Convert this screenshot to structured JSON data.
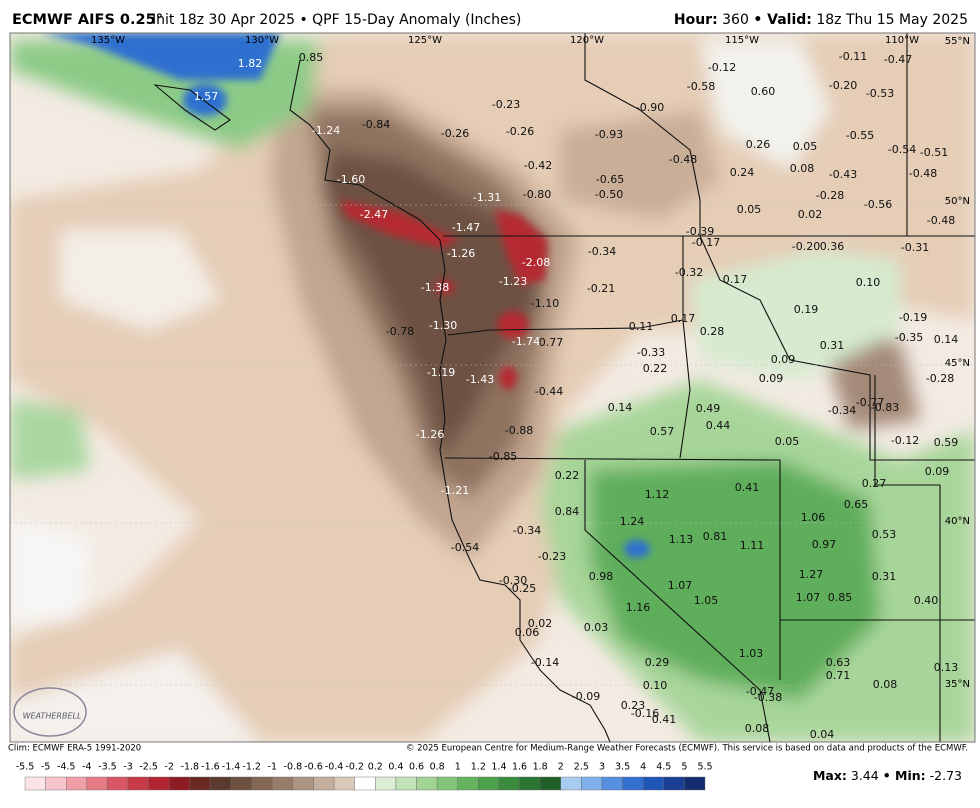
{
  "header": {
    "model": "ECMWF AIFS 0.25°",
    "run": "Init 18z 30 Apr 2025 • QPF 15-Day Anomaly (Inches)",
    "hour_label": "Hour:",
    "hour": "360",
    "valid_label": "• Valid:",
    "valid": "18z Thu 15 May 2025"
  },
  "map": {
    "lon_labels": [
      "135°W",
      "130°W",
      "125°W",
      "120°W",
      "115°W",
      "110°W"
    ],
    "lat_labels": [
      "55°N",
      "50°N",
      "45°N",
      "40°N",
      "35°N"
    ],
    "logo": "WEATHERBELL",
    "values": [
      "1.82",
      "0.85",
      "1.57",
      "-1.24",
      "-0.84",
      "-0.26",
      "-0.23",
      "-0.26",
      "-0.93",
      "-0.90",
      "-0.12",
      "-0.58",
      "0.60",
      "-0.11",
      "-0.47",
      "-0.20",
      "-0.53",
      "-0.55",
      "-0.54",
      "-0.51",
      "-0.48",
      "-0.43",
      "-0.56",
      "-0.48",
      "0.26",
      "0.05",
      "0.08",
      "-0.28",
      "0.02",
      "0.05",
      "0.24",
      "-0.48",
      "-0.42",
      "-0.65",
      "-0.50",
      "-0.80",
      "-1.60",
      "-1.31",
      "-2.47",
      "-1.47",
      "-0.39",
      "-0.17",
      "-0.20",
      "0.36",
      "-0.31",
      "-1.26",
      "-2.08",
      "-0.34",
      "-0.32",
      "0.17",
      "0.10",
      "-1.23",
      "-1.38",
      "-0.21",
      "-1.10",
      "0.19",
      "-0.19",
      "-0.78",
      "-1.30",
      "0.11",
      "0.17",
      "0.28",
      "-0.35",
      "0.14",
      "0.31",
      "-1.74",
      "0.77",
      "-0.33",
      "0.22",
      "0.09",
      "0.09",
      "-0.28",
      "-1.19",
      "-1.43",
      "-0.44",
      "0.14",
      "0.49",
      "-0.34",
      "-0.77",
      "-0.83",
      "0.44",
      "0.57",
      "-0.88",
      "-1.26",
      "0.05",
      "-0.12",
      "0.59",
      "-0.85",
      "0.22",
      "0.09",
      "0.27",
      "1.12",
      "0.41",
      "-1.21",
      "0.65",
      "0.84",
      "1.24",
      "1.06",
      "0.53",
      "-0.34",
      "1.13",
      "0.81",
      "1.11",
      "0.97",
      "-0.54",
      "-0.23",
      "1.27",
      "0.31",
      "0.98",
      "1.07",
      "-0.30",
      "-0.25",
      "1.05",
      "1.07",
      "0.85",
      "0.40",
      "1.16",
      "0.02",
      "0.03",
      "0.06",
      "1.03",
      "0.63",
      "-0.14",
      "0.29",
      "0.71",
      "0.13",
      "0.10",
      "0.08",
      "-0.47",
      "-0.38",
      "-0.09",
      "0.23",
      "-0.16",
      "0.41",
      "0.08",
      "0.04"
    ]
  },
  "colorbar": {
    "labels": [
      "-5.5",
      "-5",
      "-4.5",
      "-4",
      "-3.5",
      "-3",
      "-2.5",
      "-2",
      "-1.8",
      "-1.6",
      "-1.4",
      "-1.2",
      "-1",
      "-0.8",
      "-0.6",
      "-0.4",
      "-0.2",
      "0.2",
      "0.4",
      "0.6",
      "0.8",
      "1",
      "1.2",
      "1.4",
      "1.6",
      "1.8",
      "2",
      "2.5",
      "3",
      "3.5",
      "4",
      "4.5",
      "5",
      "5.5"
    ],
    "colors": [
      "#fbe3e6",
      "#f6c4ca",
      "#ef9ea7",
      "#e57a86",
      "#d95765",
      "#c93a48",
      "#b32532",
      "#8e1a22",
      "#6a2a22",
      "#5a3a2e",
      "#6e5040",
      "#836654",
      "#987d6b",
      "#ad9584",
      "#c4ae9d",
      "#dac9b9",
      "#ffffff",
      "#dcefd6",
      "#c0e2b6",
      "#a2d495",
      "#82c478",
      "#65b25f",
      "#4c9f4b",
      "#3a8b3d",
      "#2c7531",
      "#205f28",
      "#a8cbf0",
      "#7fb0ea",
      "#578fe0",
      "#3470d0",
      "#1f56b8",
      "#1a3f95",
      "#162c70"
    ]
  },
  "footer": {
    "climo": "Clim: ECMWF ERA-5 1991-2020",
    "copyright": "© 2025 European Centre for Medium-Range Weather Forecasts (ECMWF). This service is based on data and products of the ECMWF.",
    "max_label": "Max:",
    "max": "3.44",
    "min_label": "• Min:",
    "min": "-2.73"
  }
}
